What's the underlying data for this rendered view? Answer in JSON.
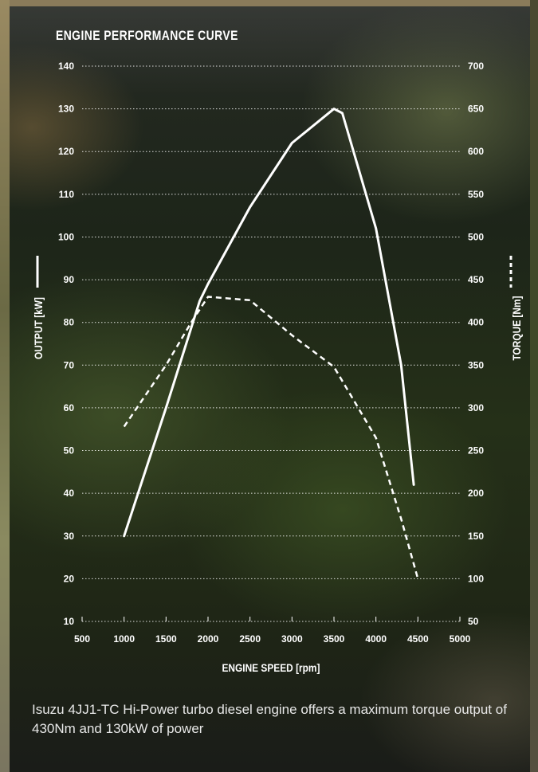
{
  "title": "ENGINE PERFORMANCE CURVE",
  "caption": "Isuzu 4JJ1-TC Hi-Power turbo diesel engine offers a maximum torque output of 430Nm and 130kW of power",
  "chart_data": {
    "type": "line",
    "title": "ENGINE PERFORMANCE CURVE",
    "xlabel": "ENGINE SPEED [rpm]",
    "ylabel_left": "OUTPUT [kW]",
    "ylabel_right": "TORQUE [Nm]",
    "xlim": [
      500,
      5000
    ],
    "ylim_left": [
      10,
      140
    ],
    "ylim_right": [
      50,
      700
    ],
    "x_ticks": [
      500,
      1000,
      1500,
      2000,
      2500,
      3000,
      3500,
      4000,
      4500,
      5000
    ],
    "y_ticks_left": [
      10,
      20,
      30,
      40,
      50,
      60,
      70,
      80,
      90,
      100,
      110,
      120,
      130,
      140
    ],
    "y_ticks_right": [
      50,
      100,
      150,
      200,
      250,
      300,
      350,
      400,
      450,
      500,
      550,
      600,
      650,
      700
    ],
    "grid": "horizontal dotted",
    "series": [
      {
        "name": "OUTPUT",
        "axis": "left",
        "line_style": "solid",
        "color": "#ffffff",
        "x": [
          1000,
          1500,
          1900,
          2000,
          2500,
          3000,
          3500,
          3600,
          4000,
          4300,
          4450
        ],
        "y": [
          30,
          60,
          85,
          89,
          107,
          122,
          130,
          129,
          102,
          70,
          42
        ]
      },
      {
        "name": "TORQUE",
        "axis": "right",
        "line_style": "dashed",
        "color": "#ffffff",
        "x": [
          1000,
          1500,
          1800,
          2000,
          2500,
          3000,
          3500,
          4000,
          4300,
          4500
        ],
        "y": [
          278,
          350,
          400,
          430,
          426,
          385,
          348,
          265,
          170,
          100
        ]
      }
    ]
  }
}
